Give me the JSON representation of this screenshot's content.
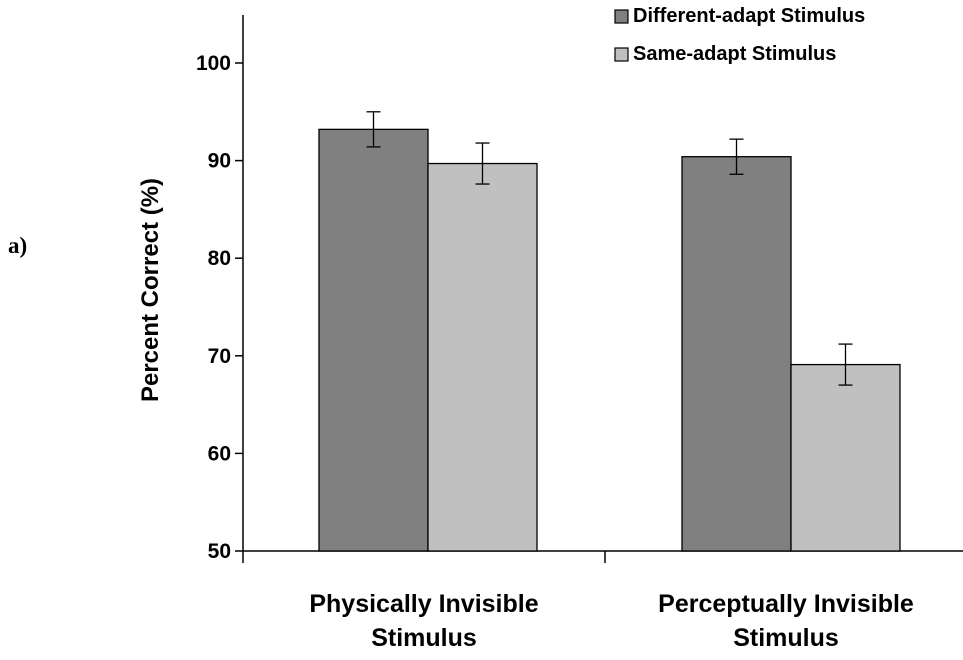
{
  "panel_label": "a)",
  "chart_data": {
    "type": "bar",
    "categories": [
      [
        "Physically Invisible",
        "Stimulus"
      ],
      [
        "Perceptually Invisible",
        "Stimulus"
      ]
    ],
    "series": [
      {
        "name": "Different-adapt Stimulus",
        "color": "#808080",
        "values": [
          93.2,
          90.4
        ],
        "errors": [
          1.8,
          1.8
        ]
      },
      {
        "name": "Same-adapt Stimulus",
        "color": "#c0c0c0",
        "values": [
          89.7,
          69.1
        ],
        "errors": [
          2.1,
          2.1
        ]
      }
    ],
    "title": "",
    "xlabel": "",
    "ylabel": "Percent Correct (%)",
    "ylim": [
      50,
      100
    ],
    "yticks": [
      "50",
      "60",
      "70",
      "80",
      "90",
      "100"
    ],
    "grid": false,
    "legend_position": "top-right"
  }
}
